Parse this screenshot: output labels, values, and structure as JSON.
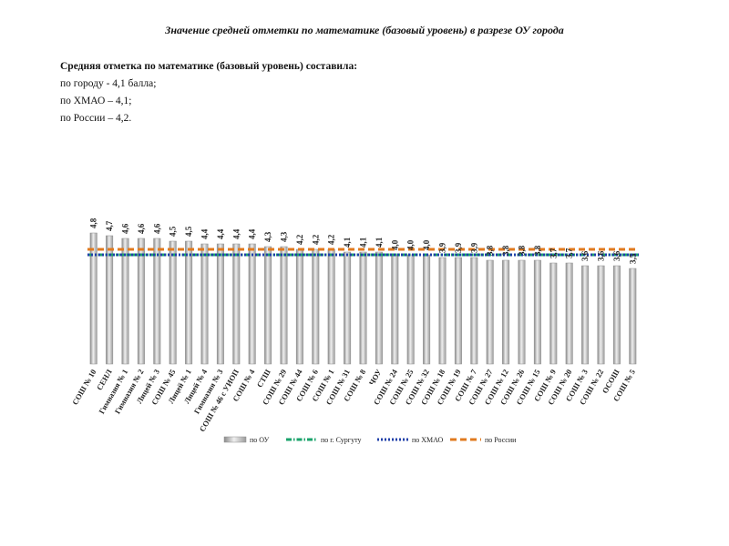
{
  "title": "Значение средней отметки по математике (базовый уровень) в разрезе ОУ города",
  "summary": {
    "heading": "Средняя отметка по математике (базовый уровень) составила:",
    "lines": [
      "по городу - 4,1 балла;",
      "по ХМАО – 4,1;",
      "по России – 4,2."
    ]
  },
  "chart_data": {
    "type": "bar",
    "categories": [
      "СОШ № 10",
      "СЕНЛ",
      "Гимназия № 1",
      "Гимназия № 2",
      "Лицей № 3",
      "СОШ № 45",
      "Лицей № 1",
      "Лицей № 4",
      "Гимназия № 3",
      "СОШ № 46 с УИОП",
      "СОШ № 4",
      "СТШ",
      "СОШ № 29",
      "СОШ № 44",
      "СОШ № 6",
      "СОШ № 1",
      "СОШ № 31",
      "СОШ № 8",
      "ЧОУ",
      "СОШ № 24",
      "СОШ № 25",
      "СОШ № 32",
      "СОШ № 18",
      "СОШ № 19",
      "СОШ № 7",
      "СОШ № 27",
      "СОШ № 12",
      "СОШ № 26",
      "СОШ № 15",
      "СОШ № 9",
      "СОШ № 20",
      "СОШ № 3",
      "СОШ № 22",
      "ОСОШ",
      "СОШ № 5"
    ],
    "values": [
      4.8,
      4.7,
      4.6,
      4.6,
      4.6,
      4.5,
      4.5,
      4.4,
      4.4,
      4.4,
      4.4,
      4.3,
      4.3,
      4.2,
      4.2,
      4.2,
      4.1,
      4.1,
      4.1,
      4.0,
      4.0,
      4.0,
      3.9,
      3.9,
      3.9,
      3.8,
      3.8,
      3.8,
      3.8,
      3.7,
      3.7,
      3.6,
      3.6,
      3.6,
      3.5
    ],
    "value_labels": [
      "4,8",
      "4,7",
      "4,6",
      "4,6",
      "4,6",
      "4,5",
      "4,5",
      "4,4",
      "4,4",
      "4,4",
      "4,4",
      "4,3",
      "4,3",
      "4,2",
      "4,2",
      "4,2",
      "4,1",
      "4,1",
      "4,1",
      "4,0",
      "4,0",
      "4,0",
      "3,9",
      "3,9",
      "3,9",
      "3,8",
      "3,8",
      "3,8",
      "3,8",
      "3,7",
      "3,7",
      "3,6",
      "3,6",
      "3,6",
      "3,5"
    ],
    "reference_lines": [
      {
        "name": "по г. Сургуту",
        "value": 4.1,
        "color": "#1aa36b",
        "style": "dash-dot"
      },
      {
        "name": "по ХМАО",
        "value": 4.1,
        "color": "#1f3fa8",
        "style": "dotted"
      },
      {
        "name": "по России",
        "value": 4.2,
        "color": "#e07a1f",
        "style": "dashed"
      }
    ],
    "bar_series_name": "по ОУ",
    "bar_color": "#b8b8b8",
    "ylim": [
      0,
      5.2
    ],
    "legend": [
      "по ОУ",
      "по г. Сургуту",
      "по ХМАО",
      "по России"
    ]
  }
}
